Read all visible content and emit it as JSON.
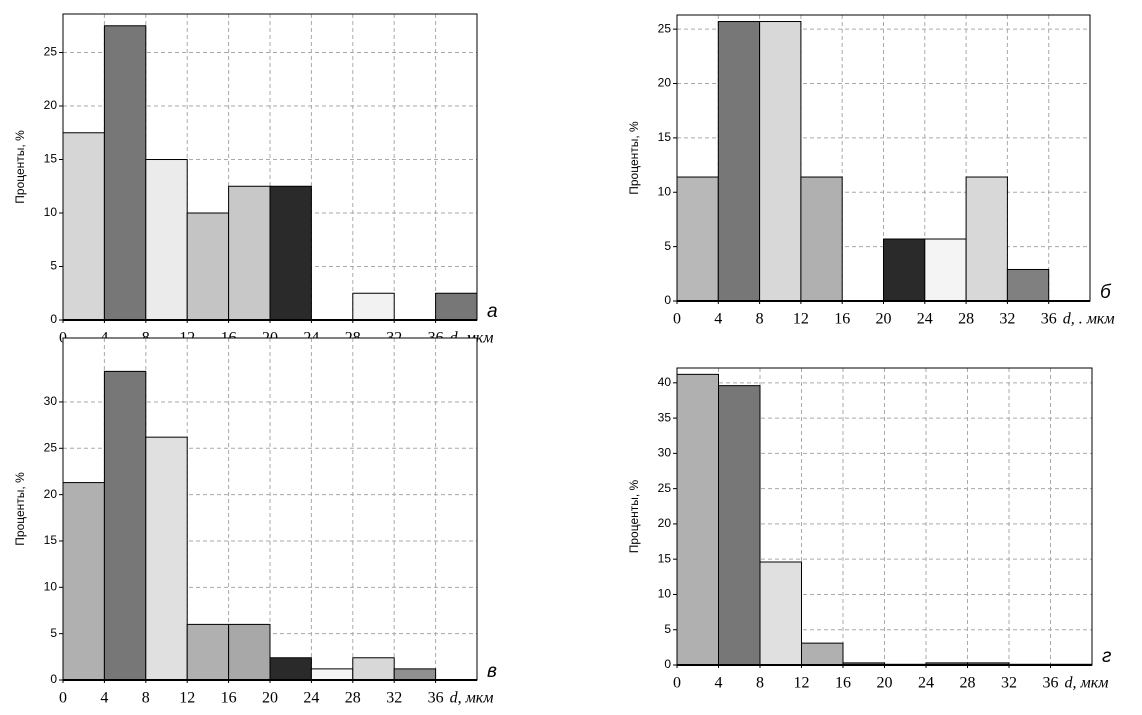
{
  "chart_data": [
    {
      "type": "histogram",
      "ylabel": "Проценты, %",
      "xlabel": "d, мкм",
      "annotation": "а",
      "bins": [
        0,
        4,
        8,
        12,
        16,
        20,
        24,
        28,
        32,
        36,
        40
      ],
      "values": [
        17.5,
        27.5,
        15,
        10,
        12.5,
        12.5,
        0,
        2.5,
        0,
        2.5
      ],
      "colors": [
        "#d6d6d6",
        "#777777",
        "#ebebeb",
        "#c4c4c4",
        "#c8c8c8",
        "#2a2a2a",
        "#ffffff",
        "#f2f2f2",
        "#ffffff",
        "#777777"
      ],
      "xlim": [
        0,
        40
      ],
      "ylim": [
        0,
        28.6
      ],
      "xticks": [
        0,
        4,
        8,
        12,
        16,
        20,
        24,
        28,
        32,
        36
      ],
      "yticks": [
        0,
        5,
        10,
        15,
        20,
        25
      ],
      "grid": true
    },
    {
      "type": "histogram",
      "ylabel": "Проценты, %",
      "xlabel": "d, . мкм",
      "annotation": "б",
      "bins": [
        0,
        4,
        8,
        12,
        16,
        20,
        24,
        28,
        32,
        36,
        40
      ],
      "values": [
        11.4,
        25.7,
        25.7,
        11.4,
        0,
        5.7,
        5.7,
        11.4,
        2.9,
        0
      ],
      "colors": [
        "#b8b8b8",
        "#777777",
        "#d8d8d8",
        "#b0b0b0",
        "#ffffff",
        "#2a2a2a",
        "#f4f4f4",
        "#d8d8d8",
        "#808080",
        "#ffffff"
      ],
      "xlim": [
        0,
        40
      ],
      "ylim": [
        0,
        26.3
      ],
      "xticks": [
        0,
        4,
        8,
        12,
        16,
        20,
        24,
        28,
        32,
        36
      ],
      "yticks": [
        0,
        5,
        10,
        15,
        20,
        25
      ],
      "grid": true
    },
    {
      "type": "histogram",
      "ylabel": "Проценты, %",
      "xlabel": "d, мкм",
      "annotation": "в",
      "bins": [
        0,
        4,
        8,
        12,
        16,
        20,
        24,
        28,
        32,
        36,
        40
      ],
      "values": [
        21.3,
        33.3,
        26.2,
        6,
        6,
        2.4,
        1.2,
        2.4,
        1.2,
        0
      ],
      "colors": [
        "#b0b0b0",
        "#777777",
        "#e0e0e0",
        "#b0b0b0",
        "#a8a8a8",
        "#2a2a2a",
        "#f4f4f4",
        "#d8d8d8",
        "#909090",
        "#ffffff"
      ],
      "xlim": [
        0,
        40
      ],
      "ylim": [
        0,
        36.9
      ],
      "xticks": [
        0,
        4,
        8,
        12,
        16,
        20,
        24,
        28,
        32,
        36
      ],
      "yticks": [
        0,
        5,
        10,
        15,
        20,
        25,
        30
      ],
      "grid": true
    },
    {
      "type": "histogram",
      "ylabel": "Проценты, %",
      "xlabel": "d, мкм",
      "annotation": "г",
      "bins": [
        0,
        4,
        8,
        12,
        16,
        20,
        24,
        28,
        32,
        36,
        40
      ],
      "values": [
        41.2,
        39.6,
        14.6,
        3.1,
        0.3,
        0.1,
        0.3,
        0.3,
        0.1,
        0.1
      ],
      "colors": [
        "#b0b0b0",
        "#777777",
        "#e0e0e0",
        "#b0b0b0",
        "#777777",
        "#aaaaaa",
        "#777777",
        "#777777",
        "#aaaaaa",
        "#aaaaaa"
      ],
      "xlim": [
        0,
        40
      ],
      "ylim": [
        0,
        42.1
      ],
      "xticks": [
        0,
        4,
        8,
        12,
        16,
        20,
        24,
        28,
        32,
        36
      ],
      "yticks": [
        0,
        5,
        10,
        15,
        20,
        25,
        30,
        35,
        40
      ],
      "grid": true
    }
  ]
}
